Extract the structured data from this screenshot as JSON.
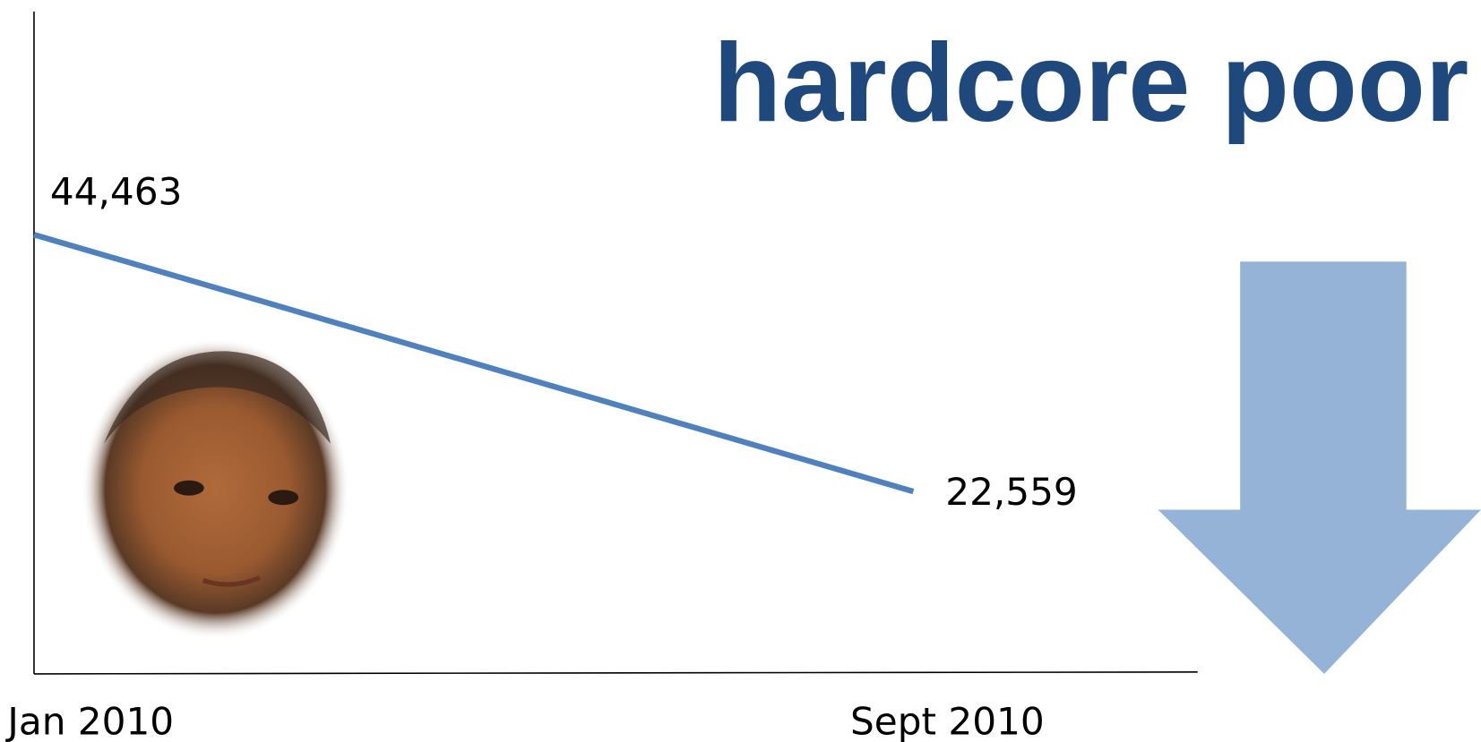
{
  "chart_data": {
    "type": "line",
    "title": "hardcore poor",
    "categories": [
      "Jan 2010",
      "Sept 2010"
    ],
    "series": [
      {
        "color": "#4f81bd",
        "values": [
          44463,
          22559
        ],
        "value_labels": [
          "44,463",
          "22,559"
        ]
      }
    ],
    "ylim": [
      7000,
      63500
    ]
  }
}
